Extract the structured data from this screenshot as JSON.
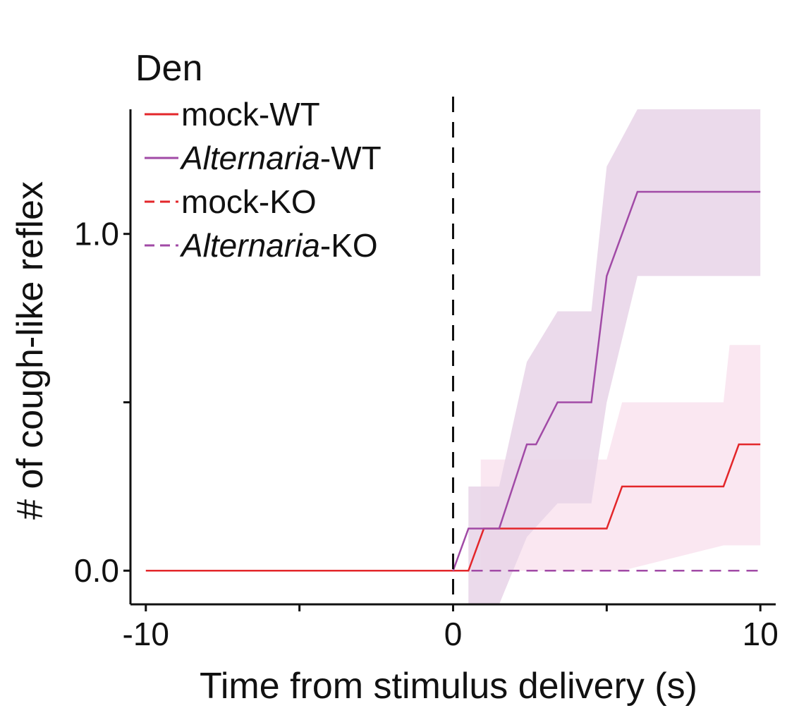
{
  "chart_data": {
    "type": "line",
    "title": "Den",
    "xlabel": "Time from stimulus delivery (s)",
    "ylabel": "# of cough-like reflex",
    "xlim": [
      -10.5,
      10.5
    ],
    "ylim": [
      -0.1,
      1.37
    ],
    "xticks": [
      -10,
      -5,
      0,
      5,
      10
    ],
    "xtick_labels": [
      "-10",
      "",
      "0",
      "",
      "10"
    ],
    "yticks": [
      0.0,
      0.5,
      1.0
    ],
    "ytick_labels": [
      "0.0",
      "",
      "1.0"
    ],
    "stimulus_line_x": 0,
    "grid": false,
    "legend_position": "top-left",
    "colors": {
      "mock": "#e3262a",
      "alternaria": "#a14aa6",
      "band_alternaria": "#e8d3e8",
      "band_mock": "#f9e3ee"
    },
    "series": [
      {
        "name": "mock-WT",
        "legend": [
          "mock-WT"
        ],
        "style": "solid",
        "color": "#e3262a",
        "x": [
          -10,
          0.5,
          1.0,
          5.0,
          5.5,
          8.8,
          9.3,
          10
        ],
        "y": [
          0,
          0,
          0.125,
          0.125,
          0.25,
          0.25,
          0.375,
          0.375
        ],
        "band": {
          "x": [
            0.9,
            1.0,
            5.0,
            5.5,
            8.8,
            9.0,
            10
          ],
          "lo": [
            0.0,
            0.0,
            0.0,
            0.0,
            0.075,
            0.075,
            0.075
          ],
          "hi": [
            0.33,
            0.33,
            0.33,
            0.5,
            0.5,
            0.67,
            0.67
          ]
        }
      },
      {
        "name": "Alternaria-WT",
        "legend": [
          "Alternaria",
          "-WT"
        ],
        "style": "solid",
        "color": "#a14aa6",
        "x": [
          0,
          0.5,
          1.5,
          2.4,
          2.7,
          3.4,
          4.5,
          5.0,
          6.0,
          10
        ],
        "y": [
          0,
          0.125,
          0.125,
          0.375,
          0.375,
          0.5,
          0.5,
          0.875,
          1.125,
          1.125
        ],
        "band": {
          "x": [
            0.5,
            1.5,
            2.4,
            3.4,
            4.5,
            5.0,
            6.0,
            10
          ],
          "lo": [
            -0.1,
            -0.1,
            0.1,
            0.2,
            0.2,
            0.5,
            0.875,
            0.875
          ],
          "hi": [
            0.25,
            0.25,
            0.62,
            0.77,
            0.77,
            1.2,
            1.37,
            1.37
          ]
        }
      },
      {
        "name": "mock-KO",
        "legend": [
          "mock-KO"
        ],
        "style": "dashed",
        "color": "#e3262a",
        "x": [
          0,
          10
        ],
        "y": [
          0,
          0
        ]
      },
      {
        "name": "Alternaria-KO",
        "legend": [
          "Alternaria",
          "-KO"
        ],
        "style": "dashed",
        "color": "#a14aa6",
        "x": [
          0,
          10
        ],
        "y": [
          0,
          0
        ]
      }
    ]
  }
}
